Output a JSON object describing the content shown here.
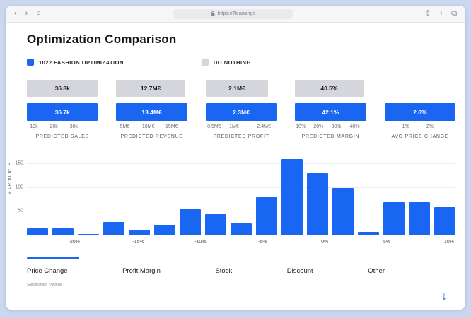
{
  "browser": {
    "url": "https://7learnings",
    "back_icon": "‹",
    "forward_icon": "›",
    "refresh_icon": "○",
    "share_icon": "⇧",
    "new_tab_icon": "+",
    "tabs_icon": "⧉"
  },
  "page": {
    "title": "Optimization Comparison",
    "legend": [
      {
        "label": "1022 FASHION OPTIMIZATION",
        "color": "#1866f2"
      },
      {
        "label": "DO NOTHING",
        "color": "#d5d5dc"
      }
    ]
  },
  "chart_data": [
    {
      "type": "bar",
      "title": "KPI comparison: 1022 Fashion Optimization vs Do Nothing",
      "kpis": [
        {
          "label": "PREDICTED SALES",
          "do_nothing": "36.8k",
          "optimization": "36.7k",
          "do_nothing_pct": 100,
          "optimization_pct": 100,
          "ticks": [
            {
              "label": "10k",
              "pos": 10
            },
            {
              "label": "20k",
              "pos": 38
            },
            {
              "label": "30k",
              "pos": 66
            }
          ]
        },
        {
          "label": "PREDICTED REVENUE",
          "do_nothing": "12.7M€",
          "optimization": "13.4M€",
          "do_nothing_pct": 97,
          "optimization_pct": 100,
          "ticks": [
            {
              "label": "5M€",
              "pos": 12
            },
            {
              "label": "10M€",
              "pos": 45
            },
            {
              "label": "15M€",
              "pos": 78
            }
          ]
        },
        {
          "label": "PREDICTED PROFIT",
          "do_nothing": "2.1M€",
          "optimization": "2.3M€",
          "do_nothing_pct": 88,
          "optimization_pct": 100,
          "ticks": [
            {
              "label": "0.5M€",
              "pos": 12
            },
            {
              "label": "1M€",
              "pos": 40
            },
            {
              "label": "2.4M€",
              "pos": 82
            }
          ]
        },
        {
          "label": "PREDICTED MARGIN",
          "do_nothing": "40.5%",
          "optimization": "42.1%",
          "do_nothing_pct": 96,
          "optimization_pct": 100,
          "ticks": [
            {
              "label": "10%",
              "pos": 8
            },
            {
              "label": "20%",
              "pos": 33
            },
            {
              "label": "30%",
              "pos": 58
            },
            {
              "label": "40%",
              "pos": 84
            }
          ]
        },
        {
          "label": "AVG PRICE CHANGE",
          "do_nothing": null,
          "optimization": "2.6%",
          "do_nothing_pct": 0,
          "optimization_pct": 100,
          "ticks": [
            {
              "label": "1%",
              "pos": 30
            },
            {
              "label": "2%",
              "pos": 64
            }
          ]
        }
      ]
    },
    {
      "type": "bar",
      "title": "Price change distribution",
      "ylabel": "# PRODUCTS",
      "yticks": [
        50,
        100,
        150
      ],
      "ymax": 175,
      "values": [
        15,
        15,
        3,
        28,
        12,
        22,
        55,
        45,
        25,
        80,
        160,
        130,
        100,
        6,
        70,
        70,
        60
      ],
      "xticks": [
        {
          "label": "-20%",
          "pos": 11
        },
        {
          "label": "-15%",
          "pos": 26
        },
        {
          "label": "-10%",
          "pos": 40.5
        },
        {
          "label": "-5%",
          "pos": 55
        },
        {
          "label": "0%",
          "pos": 69.5
        },
        {
          "label": "5%",
          "pos": 84
        },
        {
          "label": "10%",
          "pos": 98.5
        }
      ]
    }
  ],
  "tabs": {
    "items": [
      {
        "label": "Price Change",
        "active": true
      },
      {
        "label": "Profit Margin",
        "active": false
      },
      {
        "label": "Stock",
        "active": false
      },
      {
        "label": "Discount",
        "active": false
      },
      {
        "label": "Other",
        "active": false
      }
    ],
    "selected_caption": "Selected value"
  },
  "footer": {
    "download_icon": "↓"
  }
}
